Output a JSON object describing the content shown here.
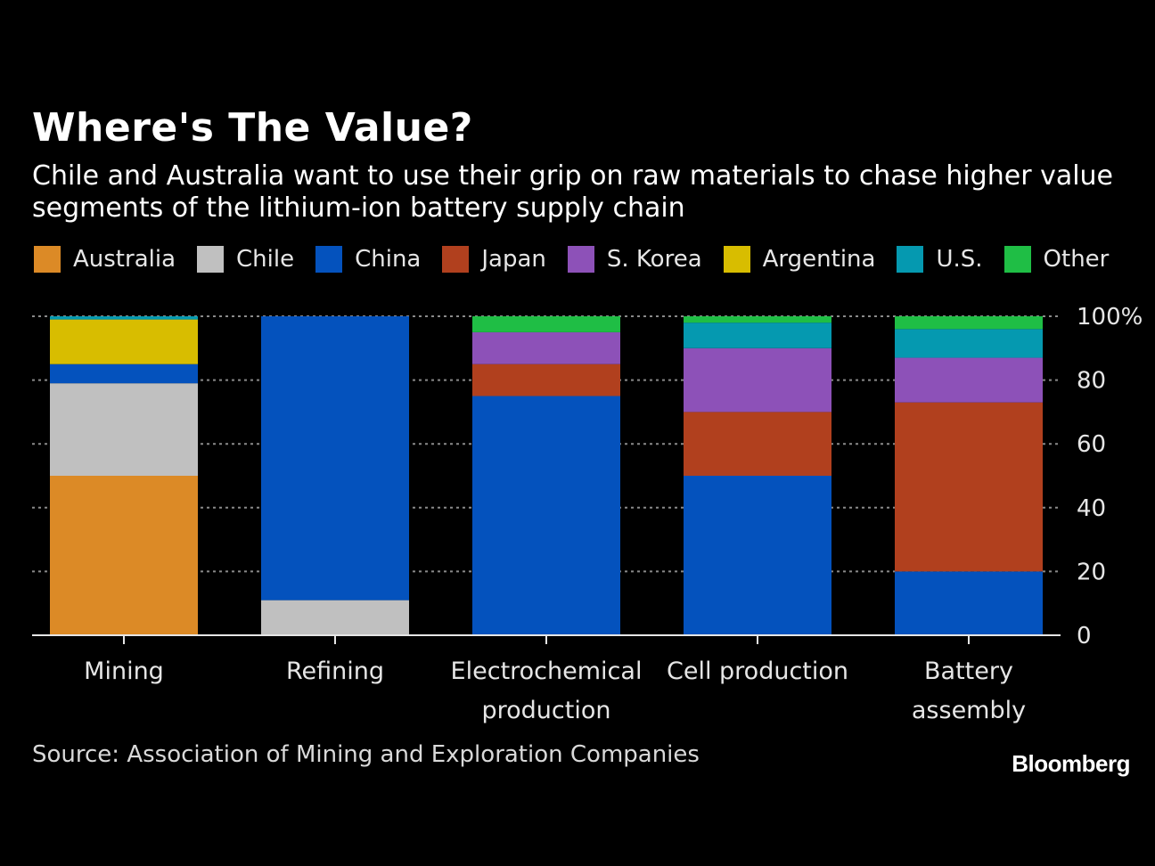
{
  "header": {
    "title": "Where's The Value?",
    "subtitle": "Chile and Australia want to use their grip on raw materials to chase higher value segments of the lithium-ion battery supply chain"
  },
  "footer": {
    "source": "Source: Association of Mining and Exploration Companies",
    "brand": "Bloomberg"
  },
  "chart_data": {
    "type": "bar",
    "stacked": true,
    "categories": [
      [
        "Mining"
      ],
      [
        "Refining"
      ],
      [
        "Electrochemical",
        "production"
      ],
      [
        "Cell production"
      ],
      [
        "Battery",
        "assembly"
      ]
    ],
    "yticks": [
      "0",
      "20",
      "40",
      "60",
      "80",
      "100%"
    ],
    "ylim": [
      0,
      100
    ],
    "grid": true,
    "legend_position": "top",
    "series": [
      {
        "name": "Australia",
        "color": "#dc8a26",
        "values": [
          50,
          0,
          0,
          0,
          0
        ]
      },
      {
        "name": "Chile",
        "color": "#c0c0c0",
        "values": [
          29,
          11,
          0,
          0,
          0
        ]
      },
      {
        "name": "China",
        "color": "#0452bd",
        "values": [
          6,
          89,
          75,
          50,
          20
        ]
      },
      {
        "name": "Japan",
        "color": "#b1401e",
        "values": [
          0,
          0,
          10,
          20,
          53
        ]
      },
      {
        "name": "S. Korea",
        "color": "#8d51b8",
        "values": [
          0,
          0,
          10,
          20,
          14
        ]
      },
      {
        "name": "Argentina",
        "color": "#d8bd00",
        "values": [
          14,
          0,
          0,
          0,
          0
        ]
      },
      {
        "name": "U.S.",
        "color": "#0599b0",
        "values": [
          1,
          0,
          0,
          8,
          9
        ]
      },
      {
        "name": "Other",
        "color": "#1fbe45",
        "values": [
          0,
          0,
          5,
          2,
          4
        ]
      }
    ]
  }
}
